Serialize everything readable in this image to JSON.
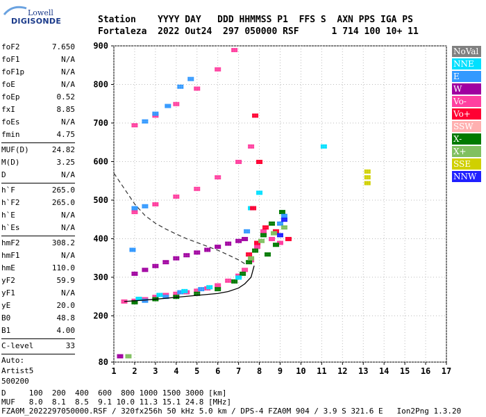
{
  "logo": {
    "line1": "Lowell",
    "line2": "DIGISONDE"
  },
  "header": {
    "line1": "Station    YYYY DAY   DDD HHMMSS P1  FFS S  AXN PPS IGA PS",
    "line2": "Fortaleza  2022 Out24  297 050000 RSF      1 714 100 10+ 11"
  },
  "params": {
    "group1": [
      {
        "k": "foF2",
        "v": "7.650"
      },
      {
        "k": "foF1",
        "v": "N/A"
      },
      {
        "k": "foF1p",
        "v": "N/A"
      },
      {
        "k": "foE",
        "v": "N/A"
      },
      {
        "k": "foEp",
        "v": "0.52"
      },
      {
        "k": "fxI",
        "v": "8.85"
      },
      {
        "k": "foEs",
        "v": "N/A"
      },
      {
        "k": "fmin",
        "v": "4.75"
      }
    ],
    "group2": [
      {
        "k": "MUF(D)",
        "v": "24.82"
      },
      {
        "k": "M(D)",
        "v": "3.25"
      },
      {
        "k": "D",
        "v": "N/A"
      }
    ],
    "group3": [
      {
        "k": "h`F",
        "v": "265.0"
      },
      {
        "k": "h`F2",
        "v": "265.0"
      },
      {
        "k": "h`E",
        "v": "N/A"
      },
      {
        "k": "h`Es",
        "v": "N/A"
      }
    ],
    "group4": [
      {
        "k": "hmF2",
        "v": "308.2"
      },
      {
        "k": "hmF1",
        "v": "N/A"
      },
      {
        "k": "hmE",
        "v": "110.0"
      },
      {
        "k": "yF2",
        "v": "59.9"
      },
      {
        "k": "yF1",
        "v": "N/A"
      },
      {
        "k": "yE",
        "v": "20.0"
      },
      {
        "k": "B0",
        "v": "48.8"
      },
      {
        "k": "B1",
        "v": "4.00"
      }
    ],
    "group5": [
      {
        "k": "C-level",
        "v": "33"
      }
    ],
    "auto": [
      "Auto:",
      "Artist5",
      "500200"
    ]
  },
  "legend": [
    {
      "label": "NoVal",
      "color": "#808080"
    },
    {
      "label": "NNE",
      "color": "#00e0ff"
    },
    {
      "label": "E",
      "color": "#3399ff"
    },
    {
      "label": "W",
      "color": "#a000a0"
    },
    {
      "label": "Vo-",
      "color": "#ff40a0"
    },
    {
      "label": "Vo+",
      "color": "#ff0033"
    },
    {
      "label": "SSW",
      "color": "#ffb0b0"
    },
    {
      "label": "X-",
      "color": "#007a00"
    },
    {
      "label": "X+",
      "color": "#80c060"
    },
    {
      "label": "SSE",
      "color": "#d0d000"
    },
    {
      "label": "NNW",
      "color": "#2020ff"
    }
  ],
  "footer": {
    "line1": "D     100  200  400  600  800 1000 1500 3000 [km]",
    "line2": "MUF   8.0  8.1  8.5  9.1 10.0 11.3 15.1 24.8 [MHz]",
    "line3": "FZA0M_2022297050000.RSF / 320fx256h 50 kHz 5.0 km / DPS-4 FZA0M 904 / 3.9 S 321.6 E   Ion2Png 1.3.20"
  },
  "chart_data": {
    "type": "scatter",
    "title": "",
    "xlabel": "",
    "ylabel": "",
    "xlim": [
      1,
      17
    ],
    "ylim": [
      80,
      900
    ],
    "xticks": [
      1,
      2,
      3,
      4,
      5,
      6,
      7,
      8,
      9,
      10,
      11,
      12,
      13,
      14,
      15,
      16,
      17
    ],
    "yticks": [
      80,
      200,
      300,
      400,
      500,
      600,
      700,
      800,
      900
    ],
    "grid": true,
    "legend_position": "right",
    "series": [
      {
        "name": "Vo-",
        "color": "#ff40a0",
        "points": [
          [
            1.5,
            238
          ],
          [
            2,
            240
          ],
          [
            2.5,
            244
          ],
          [
            3,
            250
          ],
          [
            3.5,
            255
          ],
          [
            4,
            258
          ],
          [
            4.5,
            262
          ],
          [
            5,
            266
          ],
          [
            5.5,
            272
          ],
          [
            6,
            280
          ],
          [
            6.5,
            292
          ],
          [
            7,
            305
          ],
          [
            7.3,
            320
          ],
          [
            7.6,
            345
          ],
          [
            7.9,
            380
          ],
          [
            8.2,
            420
          ],
          [
            8.6,
            400
          ],
          [
            9.0,
            390
          ],
          [
            2,
            470
          ],
          [
            3,
            490
          ],
          [
            4,
            510
          ],
          [
            5,
            530
          ],
          [
            6,
            560
          ],
          [
            7,
            600
          ],
          [
            7.6,
            640
          ],
          [
            2,
            695
          ],
          [
            3,
            720
          ],
          [
            4,
            750
          ],
          [
            5,
            790
          ],
          [
            6,
            840
          ],
          [
            6.8,
            890
          ]
        ]
      },
      {
        "name": "X-",
        "color": "#007a00",
        "points": [
          [
            2,
            236
          ],
          [
            3,
            244
          ],
          [
            4,
            250
          ],
          [
            5,
            258
          ],
          [
            6,
            270
          ],
          [
            6.8,
            290
          ],
          [
            7.2,
            310
          ],
          [
            7.5,
            340
          ],
          [
            7.8,
            370
          ],
          [
            8.2,
            410
          ],
          [
            8.6,
            440
          ],
          [
            9.1,
            470
          ],
          [
            8.4,
            360
          ],
          [
            8.8,
            385
          ]
        ]
      },
      {
        "name": "E",
        "color": "#3399ff",
        "points": [
          [
            2.5,
            240
          ],
          [
            3.5,
            250
          ],
          [
            4.2,
            262
          ],
          [
            5.2,
            270
          ],
          [
            1.9,
            372
          ],
          [
            2.0,
            480
          ],
          [
            2.5,
            485
          ],
          [
            2.5,
            705
          ],
          [
            3,
            725
          ],
          [
            3.6,
            745
          ],
          [
            4.2,
            795
          ],
          [
            4.7,
            815
          ],
          [
            7.4,
            420
          ],
          [
            9.0,
            440
          ],
          [
            9.2,
            460
          ]
        ]
      },
      {
        "name": "W",
        "color": "#a000a0",
        "points": [
          [
            2,
            310
          ],
          [
            2.5,
            320
          ],
          [
            3,
            330
          ],
          [
            3.5,
            340
          ],
          [
            4,
            350
          ],
          [
            4.5,
            358
          ],
          [
            5,
            365
          ],
          [
            5.5,
            372
          ],
          [
            6,
            380
          ],
          [
            6.5,
            388
          ],
          [
            7,
            395
          ],
          [
            7.3,
            400
          ],
          [
            1.3,
            96
          ]
        ]
      },
      {
        "name": "NNE",
        "color": "#00e0ff",
        "points": [
          [
            2.2,
            245
          ],
          [
            3.2,
            255
          ],
          [
            4.4,
            265
          ],
          [
            5.6,
            275
          ],
          [
            7.0,
            300
          ],
          [
            7.6,
            480
          ],
          [
            8.0,
            520
          ],
          [
            11.1,
            640
          ]
        ]
      },
      {
        "name": "Vo+",
        "color": "#ff0033",
        "points": [
          [
            7.5,
            360
          ],
          [
            7.9,
            390
          ],
          [
            8.3,
            430
          ],
          [
            8.8,
            420
          ],
          [
            9.4,
            400
          ],
          [
            7.7,
            480
          ],
          [
            8.0,
            600
          ],
          [
            7.8,
            720
          ]
        ]
      },
      {
        "name": "X+",
        "color": "#80c060",
        "points": [
          [
            7.6,
            350
          ],
          [
            8.1,
            395
          ],
          [
            8.7,
            415
          ],
          [
            9.2,
            430
          ],
          [
            1.7,
            96
          ]
        ]
      },
      {
        "name": "SSE",
        "color": "#d0d000",
        "points": [
          [
            13.2,
            560
          ],
          [
            13.2,
            545
          ],
          [
            13.2,
            575
          ]
        ]
      },
      {
        "name": "NNW",
        "color": "#2020ff",
        "points": [
          [
            9.2,
            450
          ],
          [
            9.0,
            410
          ]
        ]
      }
    ],
    "profile_solid": [
      [
        1.5,
        237
      ],
      [
        3,
        243
      ],
      [
        4,
        248
      ],
      [
        5,
        253
      ],
      [
        6,
        258
      ],
      [
        6.5,
        263
      ],
      [
        7,
        272
      ],
      [
        7.3,
        283
      ],
      [
        7.6,
        300
      ],
      [
        7.75,
        330
      ]
    ],
    "profile_dashed": [
      [
        1.0,
        570
      ],
      [
        1.5,
        530
      ],
      [
        2.0,
        490
      ],
      [
        2.5,
        460
      ],
      [
        3.0,
        440
      ],
      [
        3.5,
        425
      ],
      [
        4.0,
        412
      ],
      [
        4.5,
        400
      ],
      [
        5.0,
        390
      ],
      [
        5.5,
        380
      ],
      [
        6.0,
        370
      ],
      [
        6.5,
        358
      ],
      [
        7.0,
        345
      ],
      [
        7.3,
        335
      ]
    ]
  }
}
